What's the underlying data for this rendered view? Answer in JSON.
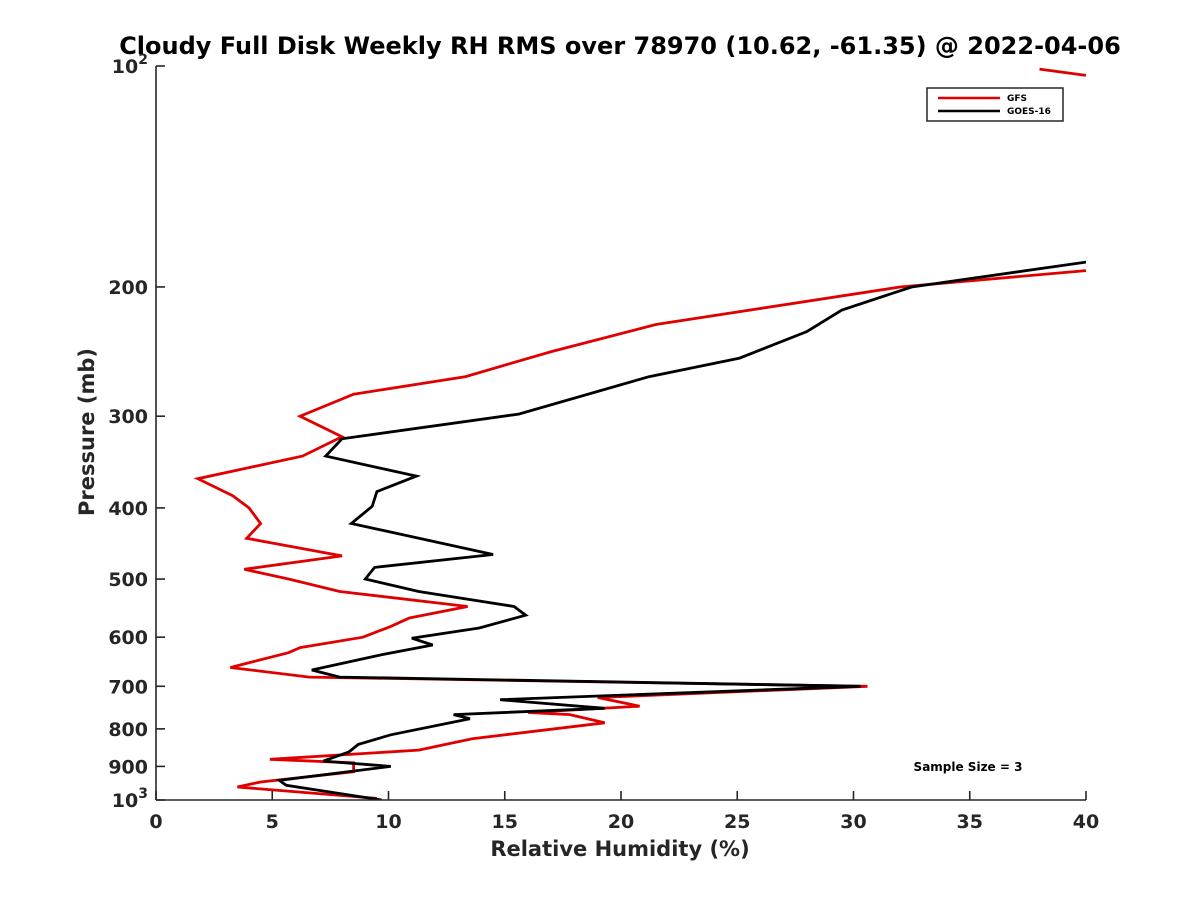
{
  "chart_data": {
    "type": "line",
    "title": "Cloudy Full Disk Weekly RH RMS over 78970 (10.62, -61.35) @ 2022-04-06",
    "xlabel": "Relative Humidity (%)",
    "ylabel": "Pressure (mb)",
    "xlim": [
      0,
      40
    ],
    "ylim": [
      100,
      1000
    ],
    "y_scale": "log",
    "y_reversed": true,
    "grid": false,
    "legend_position": "top-right",
    "x_ticks": [
      "0",
      "5",
      "10",
      "15",
      "20",
      "25",
      "30",
      "35",
      "40"
    ],
    "y_ticks": [
      {
        "value": 100,
        "base": "10",
        "exp": "2"
      },
      {
        "value": 200,
        "label": "200"
      },
      {
        "value": 300,
        "label": "300"
      },
      {
        "value": 400,
        "label": "400"
      },
      {
        "value": 500,
        "label": "500"
      },
      {
        "value": 600,
        "label": "600"
      },
      {
        "value": 700,
        "label": "700"
      },
      {
        "value": 800,
        "label": "800"
      },
      {
        "value": 900,
        "label": "900"
      },
      {
        "value": 1000,
        "base": "10",
        "exp": "3"
      }
    ],
    "annotation": "Sample Size = 3",
    "series": [
      {
        "name": "GFS",
        "color": "#e00000",
        "points": [
          [
            40.0,
            190
          ],
          [
            32.0,
            200
          ],
          [
            21.5,
            225
          ],
          [
            17.0,
            245
          ],
          [
            13.3,
            265
          ],
          [
            8.5,
            280
          ],
          [
            6.2,
            300
          ],
          [
            8.0,
            320
          ],
          [
            6.3,
            340
          ],
          [
            1.8,
            365
          ],
          [
            3.3,
            385
          ],
          [
            4.0,
            400
          ],
          [
            4.5,
            420
          ],
          [
            3.9,
            440
          ],
          [
            8.0,
            465
          ],
          [
            3.8,
            485
          ],
          [
            5.7,
            500
          ],
          [
            7.9,
            520
          ],
          [
            13.4,
            545
          ],
          [
            10.9,
            565
          ],
          [
            10.1,
            580
          ],
          [
            8.9,
            600
          ],
          [
            6.2,
            620
          ],
          [
            5.7,
            630
          ],
          [
            3.2,
            660
          ],
          [
            6.6,
            680
          ],
          [
            30.6,
            700
          ],
          [
            19.0,
            725
          ],
          [
            20.8,
            745
          ],
          [
            16.0,
            760
          ],
          [
            17.8,
            765
          ],
          [
            19.3,
            785
          ],
          [
            13.6,
            825
          ],
          [
            11.3,
            855
          ],
          [
            4.9,
            880
          ],
          [
            8.5,
            890
          ],
          [
            8.5,
            915
          ],
          [
            4.5,
            945
          ],
          [
            3.5,
            960
          ],
          [
            9.5,
            995
          ]
        ]
      },
      {
        "name": "GOES-16",
        "color": "#000000",
        "points": [
          [
            40.0,
            185
          ],
          [
            32.5,
            200
          ],
          [
            29.5,
            215
          ],
          [
            28.0,
            230
          ],
          [
            25.1,
            250
          ],
          [
            21.2,
            265
          ],
          [
            15.6,
            298
          ],
          [
            8.0,
            322
          ],
          [
            7.3,
            340
          ],
          [
            11.2,
            362
          ],
          [
            9.5,
            380
          ],
          [
            9.3,
            398
          ],
          [
            8.4,
            420
          ],
          [
            14.5,
            463
          ],
          [
            9.4,
            482
          ],
          [
            9.0,
            500
          ],
          [
            11.3,
            520
          ],
          [
            15.4,
            545
          ],
          [
            15.9,
            560
          ],
          [
            13.9,
            583
          ],
          [
            11.0,
            602
          ],
          [
            11.9,
            615
          ],
          [
            9.6,
            635
          ],
          [
            6.7,
            665
          ],
          [
            7.9,
            680
          ],
          [
            30.3,
            700
          ],
          [
            14.8,
            730
          ],
          [
            19.3,
            750
          ],
          [
            12.8,
            765
          ],
          [
            13.5,
            775
          ],
          [
            10.1,
            815
          ],
          [
            8.7,
            840
          ],
          [
            8.3,
            860
          ],
          [
            7.2,
            885
          ],
          [
            10.1,
            900
          ],
          [
            5.3,
            940
          ],
          [
            5.6,
            955
          ],
          [
            9.7,
            1000
          ]
        ]
      }
    ],
    "gfs_top_fragment": [
      [
        38.0,
        101
      ],
      [
        40.0,
        103
      ]
    ]
  }
}
